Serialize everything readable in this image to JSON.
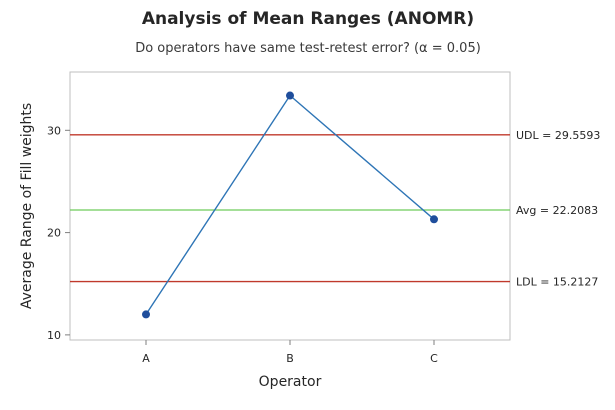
{
  "chart_data": {
    "type": "line",
    "title": "Analysis of Mean Ranges (ANOMR)",
    "subtitle": "Do operators have same test-retest error? (α = 0.05)",
    "xlabel": "Operator",
    "ylabel": "Average Range of Fill weights",
    "categories": [
      "A",
      "B",
      "C"
    ],
    "values": [
      12.0,
      33.4,
      21.3
    ],
    "ylim": [
      9.5,
      35.7
    ],
    "yticks": [
      10,
      20,
      30
    ],
    "ytick_labels": [
      "10",
      "20",
      "30"
    ],
    "reference_lines": [
      {
        "label": "UDL = 29.5593",
        "value": 29.5593,
        "color": "#c0392b"
      },
      {
        "label": "Avg = 22.2083",
        "value": 22.2083,
        "color": "#6dcc5a"
      },
      {
        "label": "LDL = 15.2127",
        "value": 15.2127,
        "color": "#c0392b"
      }
    ],
    "series_color": "#2e75b6",
    "marker_color": "#1f4e9c",
    "grid": false
  }
}
